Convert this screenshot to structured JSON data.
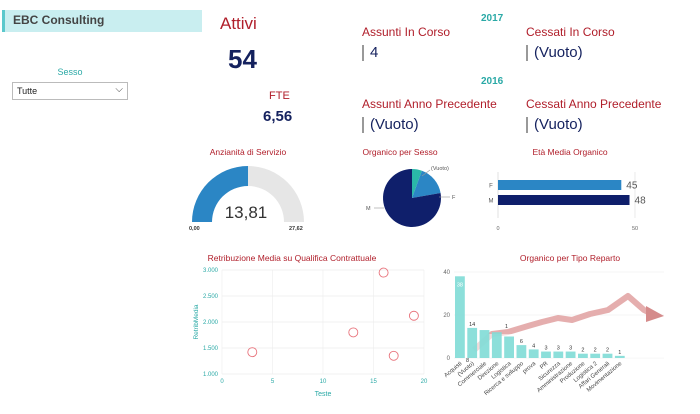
{
  "header": {
    "company": "EBC Consulting"
  },
  "slicer": {
    "label": "Sesso",
    "selected": "Tutte"
  },
  "kpis": {
    "attivi_label": "Attivi",
    "attivi_value": "54",
    "fte_label": "FTE",
    "fte_value": "6,56",
    "year_current": "2017",
    "year_previous": "2016",
    "assunti_corso_label": "Assunti In Corso",
    "assunti_corso_value": "4",
    "cessati_corso_label": "Cessati In Corso",
    "cessati_corso_value": "(Vuoto)",
    "assunti_prec_label": "Assunti Anno Precedente",
    "assunti_prec_value": "(Vuoto)",
    "cessati_prec_label": "Cessati Anno Precedente",
    "cessati_prec_value": "(Vuoto)"
  },
  "colors": {
    "accent": "#2aa9a6",
    "title_red": "#b01e2a",
    "navy": "#14215e",
    "teal": "#7fdcd6",
    "blue": "#2b86c5"
  },
  "chart_data": [
    {
      "type": "gauge",
      "title": "Anzianità di Servizio",
      "value": 13.81,
      "value_label": "13,81",
      "min": 0,
      "max": 27.62,
      "min_label": "0,00",
      "max_label": "27,62"
    },
    {
      "type": "pie",
      "title": "Organico per Sesso",
      "labels": [
        "(Vuoto)",
        "F",
        "M"
      ],
      "values": [
        3,
        9,
        42
      ],
      "colors": [
        "#2ab8a8",
        "#2b86c5",
        "#0f1f6b"
      ]
    },
    {
      "type": "bar",
      "title": "Età Media Organico",
      "categories": [
        "F",
        "M"
      ],
      "values": [
        45,
        48
      ],
      "colors": [
        "#2b86c5",
        "#0f1f6b"
      ],
      "xlim": [
        0,
        50
      ],
      "xticks": [
        "0",
        "50"
      ]
    },
    {
      "type": "scatter",
      "title": "Retribuzione Media su Qualifica Contrattuale",
      "xlabel": "Teste",
      "ylabel": "RetribMedia",
      "xlim": [
        0,
        20
      ],
      "ylim": [
        1000,
        3000
      ],
      "xticks": [
        "0",
        "5",
        "10",
        "15",
        "20"
      ],
      "yticks": [
        "1.000",
        "1.500",
        "2.000",
        "2.500",
        "3.000"
      ],
      "points": [
        {
          "x": 3,
          "y": 1420
        },
        {
          "x": 13,
          "y": 1800
        },
        {
          "x": 16,
          "y": 2950
        },
        {
          "x": 17,
          "y": 1350
        },
        {
          "x": 19,
          "y": 2120
        }
      ]
    },
    {
      "type": "bar",
      "title": "Organico per Tipo Reparto",
      "categories": [
        "Acquisti",
        "(Vuoto)",
        "Commerciale",
        "Direzione",
        "Logistica",
        "Ricerca e sviluppo",
        "prova",
        "PR",
        "Sicurezza",
        "Amministrazione",
        "Produzione",
        "Logistica 2",
        "Affari Generali",
        "Movimentazione"
      ],
      "values": [
        38,
        14,
        13,
        12,
        10,
        6,
        4,
        3,
        3,
        3,
        2,
        2,
        2,
        1
      ],
      "data_labels": [
        "38",
        "14",
        "",
        "",
        "",
        "6",
        "4",
        "3",
        "3",
        "3",
        "2",
        "2",
        "2",
        "1"
      ],
      "extra_labels": [
        "8",
        "1"
      ],
      "ylim": [
        0,
        40
      ],
      "yticks": [
        "0",
        "20",
        "40"
      ]
    }
  ]
}
